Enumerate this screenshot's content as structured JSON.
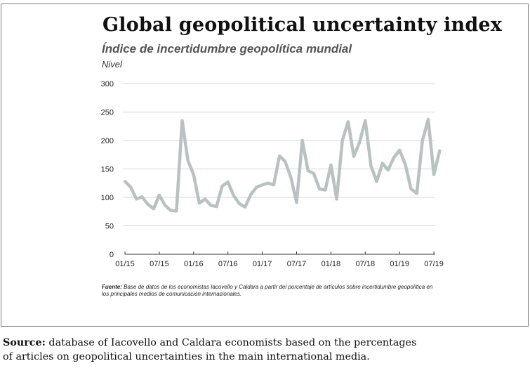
{
  "header": {
    "title": "Global geopolitical uncertainty index",
    "subtitle": "Índice de incertidumbre geopolítica mundial",
    "unit_label": "Nivel"
  },
  "footnote": {
    "label": "Fuente:",
    "text": " Base de datos de los economistas Iacovello y Caldara a partir del porcentaje de artículos sobre incertidumbre geopolítica en los principales medios de comunicación internacionales."
  },
  "source": {
    "label": "Source:",
    "line1": " database of Iacovello and Caldara economists based on the percentages",
    "line2": "of articles on geopolitical uncertainties in the main international media."
  },
  "chart_data": {
    "type": "line",
    "title": "Global geopolitical uncertainty index",
    "subtitle": "Índice de incertidumbre geopolítica mundial",
    "ylabel": "Nivel",
    "xlabel": "",
    "ylim": [
      0,
      300
    ],
    "yticks": [
      0,
      50,
      100,
      150,
      200,
      250,
      300
    ],
    "xtick_labels": [
      "01/15",
      "07/15",
      "01/16",
      "07/16",
      "01/17",
      "07/17",
      "01/18",
      "07/18",
      "01/19",
      "07/19"
    ],
    "grid": true,
    "line_color": "#b9c2c3",
    "series": [
      {
        "x": [
          "01/15",
          "02/15",
          "03/15",
          "04/15",
          "05/15",
          "06/15",
          "07/15",
          "08/15",
          "09/15",
          "10/15",
          "11/15",
          "12/15",
          "01/16",
          "02/16",
          "03/16",
          "04/16",
          "05/16",
          "06/16",
          "07/16",
          "08/16",
          "09/16",
          "10/16",
          "11/16",
          "12/16",
          "01/17",
          "02/17",
          "03/17",
          "04/17",
          "05/17",
          "06/17",
          "07/17",
          "08/17",
          "09/17",
          "10/17",
          "11/17",
          "12/17",
          "01/18",
          "02/18",
          "03/18",
          "04/18",
          "05/18",
          "06/18",
          "07/18",
          "08/18",
          "09/18",
          "10/18",
          "11/18",
          "12/18",
          "01/19",
          "02/19",
          "03/19",
          "04/19",
          "05/19",
          "06/19",
          "07/19",
          "08/19"
        ],
        "values": [
          128,
          118,
          97,
          101,
          88,
          80,
          104,
          86,
          77,
          76,
          235,
          165,
          140,
          90,
          97,
          86,
          84,
          120,
          127,
          103,
          89,
          83,
          105,
          118,
          122,
          125,
          122,
          173,
          163,
          135,
          91,
          200,
          147,
          142,
          115,
          113,
          157,
          97,
          200,
          233,
          172,
          197,
          235,
          155,
          128,
          160,
          148,
          170,
          183,
          158,
          115,
          107,
          200,
          237,
          140,
          182
        ]
      }
    ]
  }
}
